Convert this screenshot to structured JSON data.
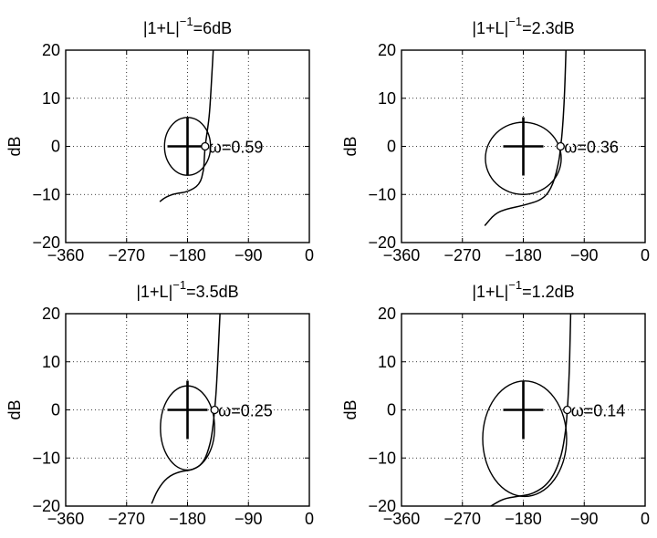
{
  "figure": {
    "panels": [
      {
        "title": {
          "base": "|1+L|",
          "sup": "−1",
          "value": "=6dB"
        },
        "chart_data": {
          "type": "line",
          "xlabel": "",
          "ylabel": "dB",
          "xlim": [
            -360,
            0
          ],
          "ylim": [
            -20,
            20
          ],
          "xticks": [
            -360,
            -270,
            -180,
            -90,
            0
          ],
          "xtick_labels": [
            "−360",
            "−270",
            "−180",
            "−90",
            "0"
          ],
          "yticks": [
            -20,
            -10,
            0,
            10,
            20
          ],
          "ytick_labels": [
            "−20",
            "−10",
            "0",
            "10",
            "20"
          ],
          "grid": true,
          "critical_point": {
            "x": -180,
            "y": 0
          },
          "marker": {
            "x": -154,
            "y": 0,
            "label": "ω=0.59"
          },
          "contour": {
            "center": [
              -180,
              0
            ],
            "x_halfwidth": 34,
            "y_top": 6,
            "y_bottom": -6
          },
          "series": [
            {
              "points": [
                [
                  -142,
                  20
                ],
                [
                  -144,
                  15
                ],
                [
                  -146,
                  10
                ],
                [
                  -148,
                  6
                ],
                [
                  -151,
                  3
                ],
                [
                  -154,
                  0
                ],
                [
                  -155,
                  -2
                ],
                [
                  -156,
                  -5
                ],
                [
                  -162,
                  -8
                ],
                [
                  -180,
                  -9.5
                ],
                [
                  -198,
                  -9.8
                ],
                [
                  -212,
                  -10.5
                ],
                [
                  -221,
                  -11.5
                ]
              ]
            }
          ]
        }
      },
      {
        "title": {
          "base": "|1+L|",
          "sup": "−1",
          "value": "=2.3dB"
        },
        "chart_data": {
          "type": "line",
          "xlabel": "",
          "ylabel": "dB",
          "xlim": [
            -360,
            0
          ],
          "ylim": [
            -20,
            20
          ],
          "xticks": [
            -360,
            -270,
            -180,
            -90,
            0
          ],
          "xtick_labels": [
            "−360",
            "−270",
            "−180",
            "−90",
            "0"
          ],
          "yticks": [
            -20,
            -10,
            0,
            10,
            20
          ],
          "ytick_labels": [
            "−20",
            "−10",
            "0",
            "10",
            "20"
          ],
          "grid": true,
          "critical_point": {
            "x": -180,
            "y": 0
          },
          "marker": {
            "x": -125,
            "y": 0,
            "label": "ω=0.36"
          },
          "contour": {
            "center": [
              -180,
              -3
            ],
            "x_halfwidth": 56,
            "y_top": 5,
            "y_bottom": -10
          },
          "series": [
            {
              "points": [
                [
                  -117,
                  20
                ],
                [
                  -118,
                  15
                ],
                [
                  -120,
                  8
                ],
                [
                  -123,
                  2
                ],
                [
                  -125,
                  0
                ],
                [
                  -127,
                  -3
                ],
                [
                  -136,
                  -8
                ],
                [
                  -150,
                  -11
                ],
                [
                  -180,
                  -12.3
                ],
                [
                  -205,
                  -13
                ],
                [
                  -222,
                  -14
                ],
                [
                  -237,
                  -16.5
                ]
              ]
            }
          ]
        }
      },
      {
        "title": {
          "base": "|1+L|",
          "sup": "−1",
          "value": "=3.5dB"
        },
        "chart_data": {
          "type": "line",
          "xlabel": "",
          "ylabel": "dB",
          "xlim": [
            -360,
            0
          ],
          "ylim": [
            -20,
            20
          ],
          "xticks": [
            -360,
            -270,
            -180,
            -90,
            0
          ],
          "xtick_labels": [
            "−360",
            "−270",
            "−180",
            "−90",
            "0"
          ],
          "yticks": [
            -20,
            -10,
            0,
            10,
            20
          ],
          "ytick_labels": [
            "−20",
            "−10",
            "0",
            "10",
            "20"
          ],
          "grid": true,
          "critical_point": {
            "x": -180,
            "y": 0
          },
          "marker": {
            "x": -140,
            "y": 0,
            "label": "ω=0.25"
          },
          "contour": {
            "center": [
              -180,
              -3
            ],
            "x_halfwidth": 40,
            "y_top": 5,
            "y_bottom": -12.5
          },
          "series": [
            {
              "points": [
                [
                  -132,
                  20
                ],
                [
                  -134,
                  14
                ],
                [
                  -136,
                  8
                ],
                [
                  -138,
                  3
                ],
                [
                  -140,
                  0
                ],
                [
                  -142,
                  -3
                ],
                [
                  -146,
                  -7
                ],
                [
                  -156,
                  -11
                ],
                [
                  -172,
                  -12.5
                ],
                [
                  -192,
                  -12.8
                ],
                [
                  -210,
                  -14
                ],
                [
                  -224,
                  -16.5
                ],
                [
                  -233,
                  -19.5
                ]
              ]
            }
          ]
        }
      },
      {
        "title": {
          "base": "|1+L|",
          "sup": "−1",
          "value": "=1.2dB"
        },
        "chart_data": {
          "type": "line",
          "xlabel": "",
          "ylabel": "dB",
          "xlim": [
            -360,
            0
          ],
          "ylim": [
            -20,
            20
          ],
          "xticks": [
            -360,
            -270,
            -180,
            -90,
            0
          ],
          "xtick_labels": [
            "−360",
            "−270",
            "−180",
            "−90",
            "0"
          ],
          "yticks": [
            -20,
            -10,
            0,
            10,
            20
          ],
          "ytick_labels": [
            "−20",
            "−10",
            "0",
            "10",
            "20"
          ],
          "grid": true,
          "critical_point": {
            "x": -180,
            "y": 0
          },
          "marker": {
            "x": -115,
            "y": 0,
            "label": "ω=0.14"
          },
          "contour": {
            "center": [
              -178,
              -6
            ],
            "x_halfwidth": 62,
            "y_top": 6,
            "y_bottom": -18
          },
          "series": [
            {
              "points": [
                [
                  -110,
                  20
                ],
                [
                  -111,
                  14
                ],
                [
                  -112,
                  8
                ],
                [
                  -114,
                  2
                ],
                [
                  -115,
                  0
                ],
                [
                  -117,
                  -4
                ],
                [
                  -124,
                  -10
                ],
                [
                  -140,
                  -15
                ],
                [
                  -165,
                  -17.5
                ],
                [
                  -190,
                  -18
                ],
                [
                  -210,
                  -18.5
                ],
                [
                  -228,
                  -20
                ]
              ]
            }
          ]
        }
      }
    ]
  }
}
